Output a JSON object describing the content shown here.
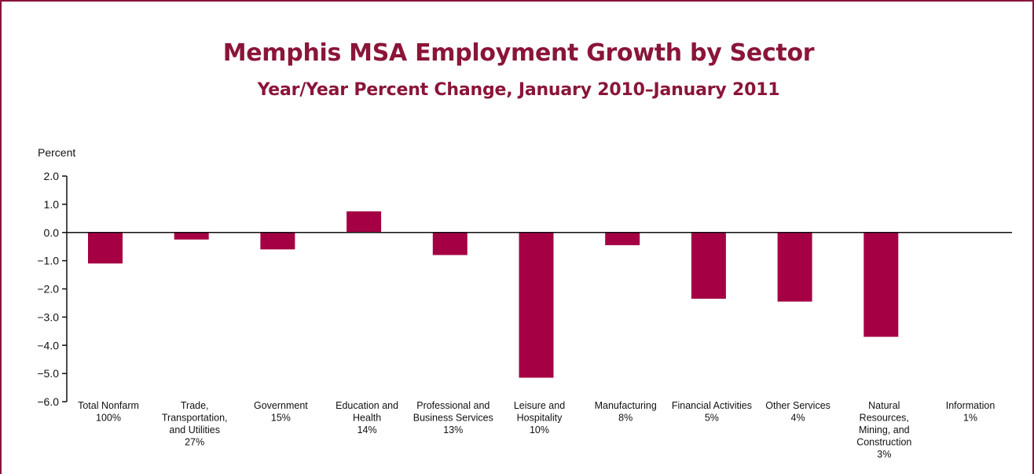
{
  "chart_data": {
    "type": "bar",
    "title": "Memphis MSA Employment Growth by Sector",
    "subtitle": "Year/Year Percent Change, January 2010–January 2011",
    "ylabel": "Percent",
    "xlabel": "",
    "ylim": [
      -6.0,
      2.0
    ],
    "yticks": [
      "2.0",
      "1.0",
      "0.0",
      "−1.0",
      "−2.0",
      "−3.0",
      "−4.0",
      "−5.0",
      "−6.0"
    ],
    "ytick_values": [
      2,
      1,
      0,
      -1,
      -2,
      -3,
      -4,
      -5,
      -6
    ],
    "grid": false,
    "bar_color": "#a50044",
    "categories": [
      {
        "lines": [
          "Total Nonfarm",
          "100%"
        ]
      },
      {
        "lines": [
          "Trade,",
          "Transportation,",
          "and Utilities",
          "27%"
        ]
      },
      {
        "lines": [
          "Government",
          "15%"
        ]
      },
      {
        "lines": [
          "Education and",
          "Health",
          "14%"
        ]
      },
      {
        "lines": [
          "Professional and",
          "Business Services",
          "13%"
        ]
      },
      {
        "lines": [
          "Leisure and",
          "Hospitality",
          "10%"
        ]
      },
      {
        "lines": [
          "Manufacturing",
          "8%"
        ]
      },
      {
        "lines": [
          "Financial Activities",
          "5%"
        ]
      },
      {
        "lines": [
          "Other Services",
          "4%"
        ]
      },
      {
        "lines": [
          "Natural",
          "Resources,",
          "Mining, and",
          "Construction",
          "3%"
        ]
      },
      {
        "lines": [
          "Information",
          "1%"
        ]
      }
    ],
    "values": [
      -1.1,
      -0.25,
      -0.6,
      0.75,
      -0.8,
      -5.15,
      -0.45,
      -2.35,
      -2.45,
      -3.7,
      0.0
    ]
  }
}
